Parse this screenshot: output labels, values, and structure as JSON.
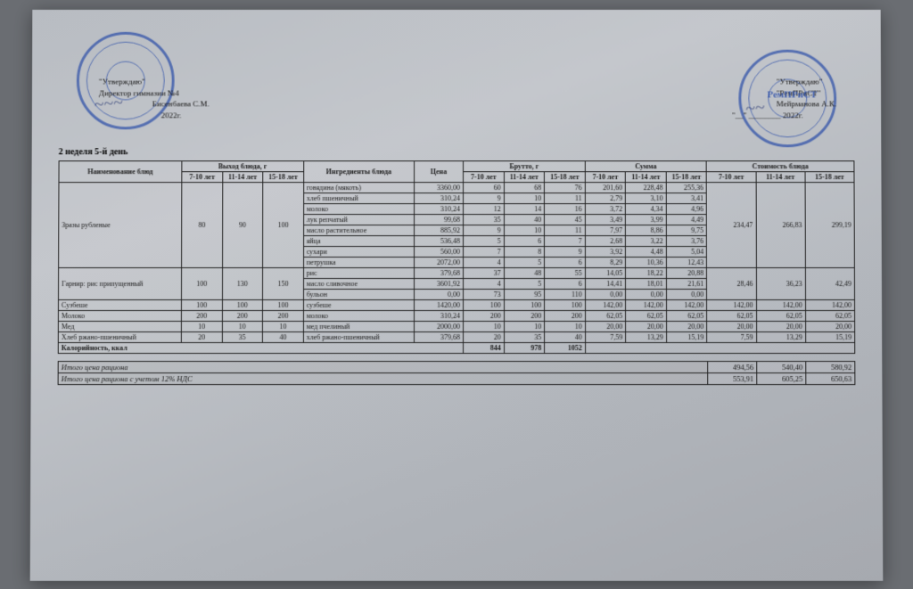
{
  "approval_left": {
    "line1": "\"Утверждаю\"",
    "line2": "Директор гимназии №4",
    "name": "Бисенбаева С.М.",
    "year": "2022г."
  },
  "approval_right": {
    "line1": "\"Утверждаю\"",
    "line2": "\"РемПРиСТ\"",
    "name": "Мейрманова А.К.",
    "year": "2022г."
  },
  "stamp_right_text": "РемПРиСТ",
  "week_label": "2 неделя 5-й день",
  "headers": {
    "dish_name": "Наименование блюд",
    "yield": "Выход блюда, г",
    "ingredients": "Ингредиенты блюда",
    "price": "Цена",
    "brutto": "Брутто, г",
    "sum": "Сумма",
    "cost": "Стоимость блюда",
    "age1": "7-10 лет",
    "age2": "11-14 лет",
    "age3": "15-18 лет",
    "calories": "Калорийность, ккал"
  },
  "dishes": [
    {
      "name": "Зразы рубленые",
      "yield": [
        "80",
        "90",
        "100"
      ],
      "cost": [
        "234,47",
        "266,83",
        "299,19"
      ],
      "ingredients": [
        {
          "n": "говядина (мякоть)",
          "p": "3360,00",
          "b": [
            "60",
            "68",
            "76"
          ],
          "s": [
            "201,60",
            "228,48",
            "255,36"
          ]
        },
        {
          "n": "хлеб пшеничный",
          "p": "310,24",
          "b": [
            "9",
            "10",
            "11"
          ],
          "s": [
            "2,79",
            "3,10",
            "3,41"
          ]
        },
        {
          "n": "молоко",
          "p": "310,24",
          "b": [
            "12",
            "14",
            "16"
          ],
          "s": [
            "3,72",
            "4,34",
            "4,96"
          ]
        },
        {
          "n": "лук репчатый",
          "p": "99,68",
          "b": [
            "35",
            "40",
            "45"
          ],
          "s": [
            "3,49",
            "3,99",
            "4,49"
          ]
        },
        {
          "n": "масло растительное",
          "p": "885,92",
          "b": [
            "9",
            "10",
            "11"
          ],
          "s": [
            "7,97",
            "8,86",
            "9,75"
          ]
        },
        {
          "n": "яйца",
          "p": "536,48",
          "b": [
            "5",
            "6",
            "7"
          ],
          "s": [
            "2,68",
            "3,22",
            "3,76"
          ]
        },
        {
          "n": "сухари",
          "p": "560,00",
          "b": [
            "7",
            "8",
            "9"
          ],
          "s": [
            "3,92",
            "4,48",
            "5,04"
          ]
        },
        {
          "n": "петрушка",
          "p": "2072,00",
          "b": [
            "4",
            "5",
            "6"
          ],
          "s": [
            "8,29",
            "10,36",
            "12,43"
          ]
        }
      ]
    },
    {
      "name": "Гарнир: рис припущенный",
      "yield": [
        "100",
        "130",
        "150"
      ],
      "cost": [
        "28,46",
        "36,23",
        "42,49"
      ],
      "ingredients": [
        {
          "n": "рис",
          "p": "379,68",
          "b": [
            "37",
            "48",
            "55"
          ],
          "s": [
            "14,05",
            "18,22",
            "20,88"
          ]
        },
        {
          "n": "масло сливочное",
          "p": "3601,92",
          "b": [
            "4",
            "5",
            "6"
          ],
          "s": [
            "14,41",
            "18,01",
            "21,61"
          ]
        },
        {
          "n": "бульон",
          "p": "0,00",
          "b": [
            "73",
            "95",
            "110"
          ],
          "s": [
            "0,00",
            "0,00",
            "0,00"
          ]
        }
      ]
    },
    {
      "name": "Сузбеше",
      "yield": [
        "100",
        "100",
        "100"
      ],
      "cost": [
        "142,00",
        "142,00",
        "142,00"
      ],
      "ingredients": [
        {
          "n": "сузбеше",
          "p": "1420,00",
          "b": [
            "100",
            "100",
            "100"
          ],
          "s": [
            "142,00",
            "142,00",
            "142,00"
          ]
        }
      ]
    },
    {
      "name": "Молоко",
      "yield": [
        "200",
        "200",
        "200"
      ],
      "cost": [
        "62,05",
        "62,05",
        "62,05"
      ],
      "ingredients": [
        {
          "n": "молоко",
          "p": "310,24",
          "b": [
            "200",
            "200",
            "200"
          ],
          "s": [
            "62,05",
            "62,05",
            "62,05"
          ]
        }
      ]
    },
    {
      "name": "Мед",
      "yield": [
        "10",
        "10",
        "10"
      ],
      "cost": [
        "20,00",
        "20,00",
        "20,00"
      ],
      "ingredients": [
        {
          "n": "мед пчелиный",
          "p": "2000,00",
          "b": [
            "10",
            "10",
            "10"
          ],
          "s": [
            "20,00",
            "20,00",
            "20,00"
          ]
        }
      ]
    },
    {
      "name": "Хлеб ржано-пшеничный",
      "yield": [
        "20",
        "35",
        "40"
      ],
      "cost": [
        "7,59",
        "13,29",
        "15,19"
      ],
      "ingredients": [
        {
          "n": "хлеб ржано-пшеничный",
          "p": "379,68",
          "b": [
            "20",
            "35",
            "40"
          ],
          "s": [
            "7,59",
            "13,29",
            "15,19"
          ]
        }
      ]
    }
  ],
  "calories": [
    "844",
    "978",
    "1052"
  ],
  "totals": {
    "label1": "Итого цена рациона",
    "vals1": [
      "494,56",
      "540,40",
      "580,92"
    ],
    "label2": "Итого цена рациона с учетом 12% НДС",
    "vals2": [
      "553,91",
      "605,25",
      "650,63"
    ]
  }
}
